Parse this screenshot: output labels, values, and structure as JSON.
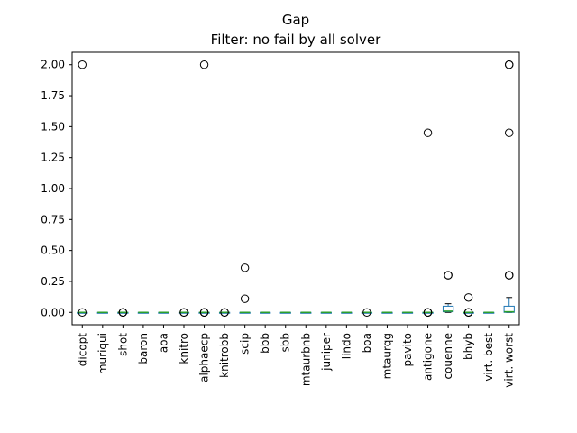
{
  "chart_data": {
    "type": "box",
    "title": "Gap",
    "subtitle": "Filter: no fail by all solver",
    "xlabel": "",
    "ylabel": "",
    "ylim": [
      -0.1,
      2.1
    ],
    "yticks": [
      "0.00",
      "0.25",
      "0.50",
      "0.75",
      "1.00",
      "1.25",
      "1.50",
      "1.75",
      "2.00"
    ],
    "grid": false,
    "categories": [
      "dicopt",
      "muriqui",
      "shot",
      "baron",
      "aoa",
      "knitro",
      "alphaecp",
      "knitrobb",
      "scip",
      "bbb",
      "sbb",
      "mtaurbnb",
      "juniper",
      "lindo",
      "boa",
      "mtaurqg",
      "pavito",
      "antigone",
      "couenne",
      "bhyb",
      "virt. best",
      "virt. worst"
    ],
    "boxes": [
      {
        "q1": 0,
        "median": 0,
        "q3": 0,
        "whisker_low": 0,
        "whisker_high": 0,
        "outliers": [
          2.0,
          0.0
        ]
      },
      {
        "q1": 0,
        "median": 0,
        "q3": 0,
        "whisker_low": 0,
        "whisker_high": 0,
        "outliers": []
      },
      {
        "q1": 0,
        "median": 0,
        "q3": 0,
        "whisker_low": 0,
        "whisker_high": 0,
        "outliers": [
          0.0,
          0.0,
          0.0
        ]
      },
      {
        "q1": 0,
        "median": 0,
        "q3": 0,
        "whisker_low": 0,
        "whisker_high": 0,
        "outliers": []
      },
      {
        "q1": 0,
        "median": 0,
        "q3": 0,
        "whisker_low": 0,
        "whisker_high": 0,
        "outliers": []
      },
      {
        "q1": 0,
        "median": 0,
        "q3": 0,
        "whisker_low": 0,
        "whisker_high": 0,
        "outliers": [
          0.0,
          0.0
        ]
      },
      {
        "q1": 0,
        "median": 0,
        "q3": 0,
        "whisker_low": 0,
        "whisker_high": 0,
        "outliers": [
          2.0,
          0.0,
          0.0,
          0.0
        ]
      },
      {
        "q1": 0,
        "median": 0,
        "q3": 0,
        "whisker_low": 0,
        "whisker_high": 0,
        "outliers": [
          0.0,
          0.0
        ]
      },
      {
        "q1": 0,
        "median": 0,
        "q3": 0,
        "whisker_low": 0,
        "whisker_high": 0,
        "outliers": [
          0.36,
          0.11
        ]
      },
      {
        "q1": 0,
        "median": 0,
        "q3": 0,
        "whisker_low": 0,
        "whisker_high": 0,
        "outliers": []
      },
      {
        "q1": 0,
        "median": 0,
        "q3": 0,
        "whisker_low": 0,
        "whisker_high": 0,
        "outliers": []
      },
      {
        "q1": 0,
        "median": 0,
        "q3": 0,
        "whisker_low": 0,
        "whisker_high": 0,
        "outliers": []
      },
      {
        "q1": 0,
        "median": 0,
        "q3": 0,
        "whisker_low": 0,
        "whisker_high": 0,
        "outliers": []
      },
      {
        "q1": 0,
        "median": 0,
        "q3": 0,
        "whisker_low": 0,
        "whisker_high": 0,
        "outliers": []
      },
      {
        "q1": 0,
        "median": 0,
        "q3": 0,
        "whisker_low": 0,
        "whisker_high": 0,
        "outliers": [
          0.0
        ]
      },
      {
        "q1": 0,
        "median": 0,
        "q3": 0,
        "whisker_low": 0,
        "whisker_high": 0,
        "outliers": []
      },
      {
        "q1": 0,
        "median": 0,
        "q3": 0,
        "whisker_low": 0,
        "whisker_high": 0,
        "outliers": []
      },
      {
        "q1": 0,
        "median": 0,
        "q3": 0,
        "whisker_low": 0,
        "whisker_high": 0,
        "outliers": [
          1.45,
          0.0,
          0.0,
          0.0
        ]
      },
      {
        "q1": 0.005,
        "median": 0.01,
        "q3": 0.05,
        "whisker_low": 0.0,
        "whisker_high": 0.07,
        "outliers": [
          0.3,
          0.3
        ]
      },
      {
        "q1": 0,
        "median": 0,
        "q3": 0,
        "whisker_low": 0,
        "whisker_high": 0,
        "outliers": [
          0.12,
          0.0,
          0.0,
          0.0
        ]
      },
      {
        "q1": 0,
        "median": 0,
        "q3": 0,
        "whisker_low": 0,
        "whisker_high": 0,
        "outliers": []
      },
      {
        "q1": 0.0,
        "median": 0.005,
        "q3": 0.05,
        "whisker_low": 0.0,
        "whisker_high": 0.12,
        "outliers": [
          2.0,
          2.0,
          1.45,
          0.3,
          0.3
        ]
      }
    ],
    "colors": {
      "box": "#1f77b4",
      "median": "#2ca02c",
      "whisker": "#1f77b4",
      "outlier": "#000000",
      "axis": "#000000"
    }
  }
}
